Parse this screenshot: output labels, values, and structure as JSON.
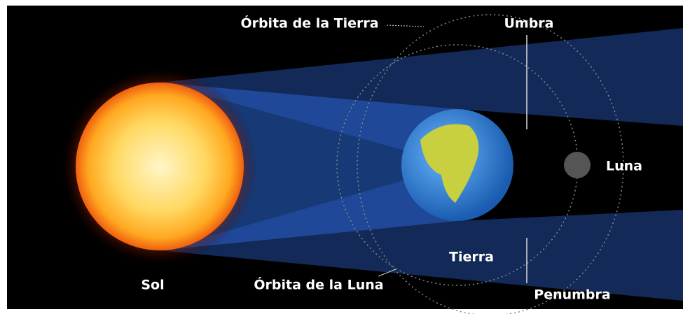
{
  "labels": {
    "earth_orbit": "Órbita de la Tierra",
    "umbra": "Umbra",
    "moon": "Luna",
    "earth": "Tierra",
    "sun": "Sol",
    "moon_orbit": "Órbita de la Luna",
    "penumbra": "Penumbra"
  }
}
